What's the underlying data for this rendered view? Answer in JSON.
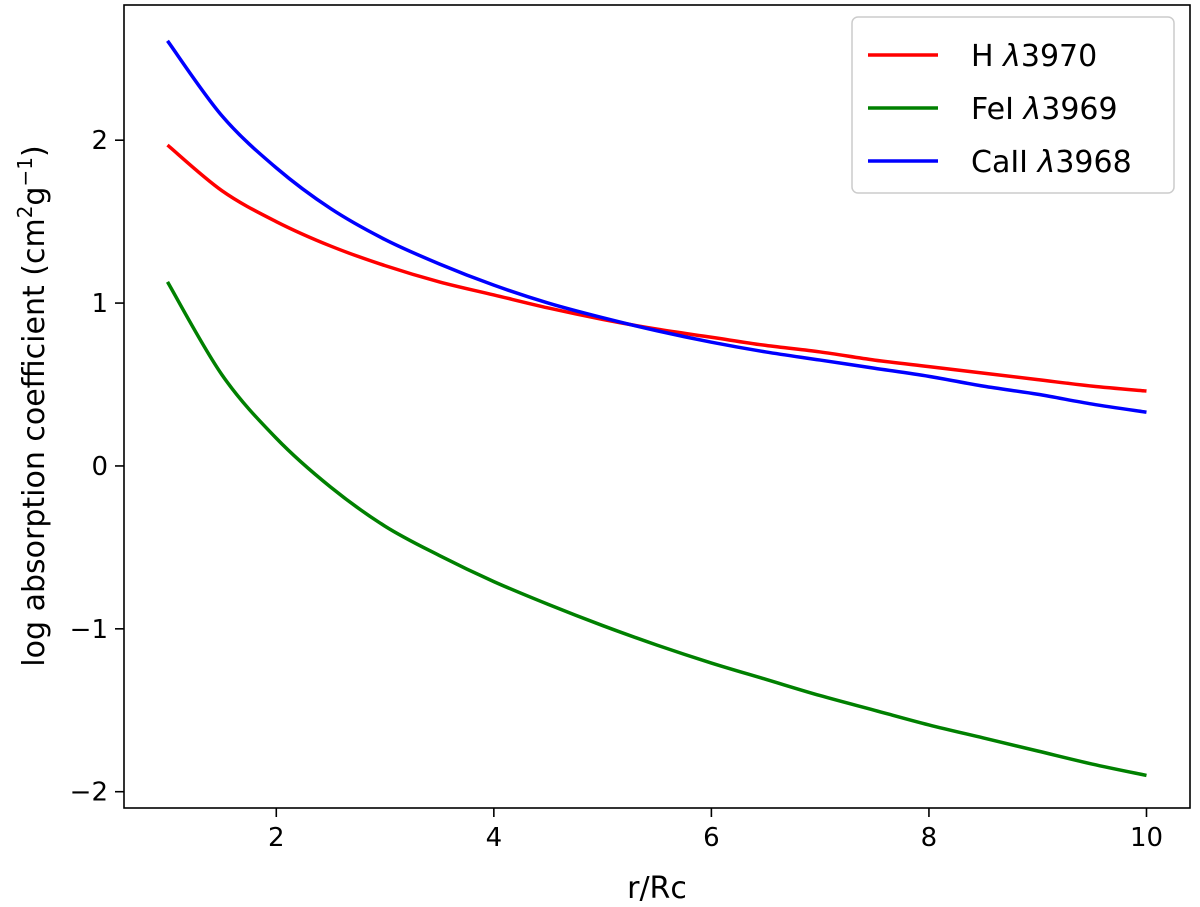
{
  "chart_data": {
    "type": "line",
    "xlabel": "r/Rc",
    "ylabel": "log absorption coefficient (cm²g⁻¹)",
    "ylabel_parts": [
      "log absorption coefficient (cm",
      "2",
      "g",
      "−1",
      ")"
    ],
    "xlim": [
      0.6,
      10.4
    ],
    "ylim": [
      -2.1,
      2.83
    ],
    "xticks": [
      2,
      4,
      6,
      8,
      10
    ],
    "xtick_labels": [
      "2",
      "4",
      "6",
      "8",
      "10"
    ],
    "yticks": [
      -2,
      -1,
      0,
      1,
      2
    ],
    "ytick_labels": [
      "−2",
      "−1",
      "0",
      "1",
      "2"
    ],
    "grid": false,
    "legend_position": "top-right",
    "x": [
      1.0,
      1.5,
      2.0,
      2.5,
      3.0,
      3.5,
      4.0,
      4.5,
      5.0,
      5.5,
      6.0,
      6.5,
      7.0,
      7.5,
      8.0,
      8.5,
      9.0,
      9.5,
      10.0
    ],
    "series": [
      {
        "name": "H λ3970",
        "legend_prefix": "H ",
        "legend_lambda": "λ",
        "legend_suffix": "3970",
        "color": "#ff0000",
        "values": [
          1.97,
          1.69,
          1.5,
          1.35,
          1.23,
          1.13,
          1.05,
          0.97,
          0.9,
          0.84,
          0.79,
          0.74,
          0.7,
          0.65,
          0.61,
          0.57,
          0.53,
          0.49,
          0.46
        ]
      },
      {
        "name": "FeI λ3969",
        "legend_prefix": "FeI ",
        "legend_lambda": "λ",
        "legend_suffix": "3969",
        "color": "#008000",
        "values": [
          1.13,
          0.56,
          0.17,
          -0.13,
          -0.37,
          -0.55,
          -0.71,
          -0.85,
          -0.98,
          -1.1,
          -1.21,
          -1.31,
          -1.41,
          -1.5,
          -1.59,
          -1.67,
          -1.75,
          -1.83,
          -1.9
        ]
      },
      {
        "name": "CaII λ3968",
        "legend_prefix": "CaII ",
        "legend_lambda": "λ",
        "legend_suffix": "3968",
        "color": "#0000ff",
        "values": [
          2.61,
          2.15,
          1.83,
          1.58,
          1.39,
          1.24,
          1.11,
          1.0,
          0.91,
          0.83,
          0.76,
          0.7,
          0.65,
          0.6,
          0.55,
          0.49,
          0.44,
          0.38,
          0.33
        ]
      }
    ]
  }
}
